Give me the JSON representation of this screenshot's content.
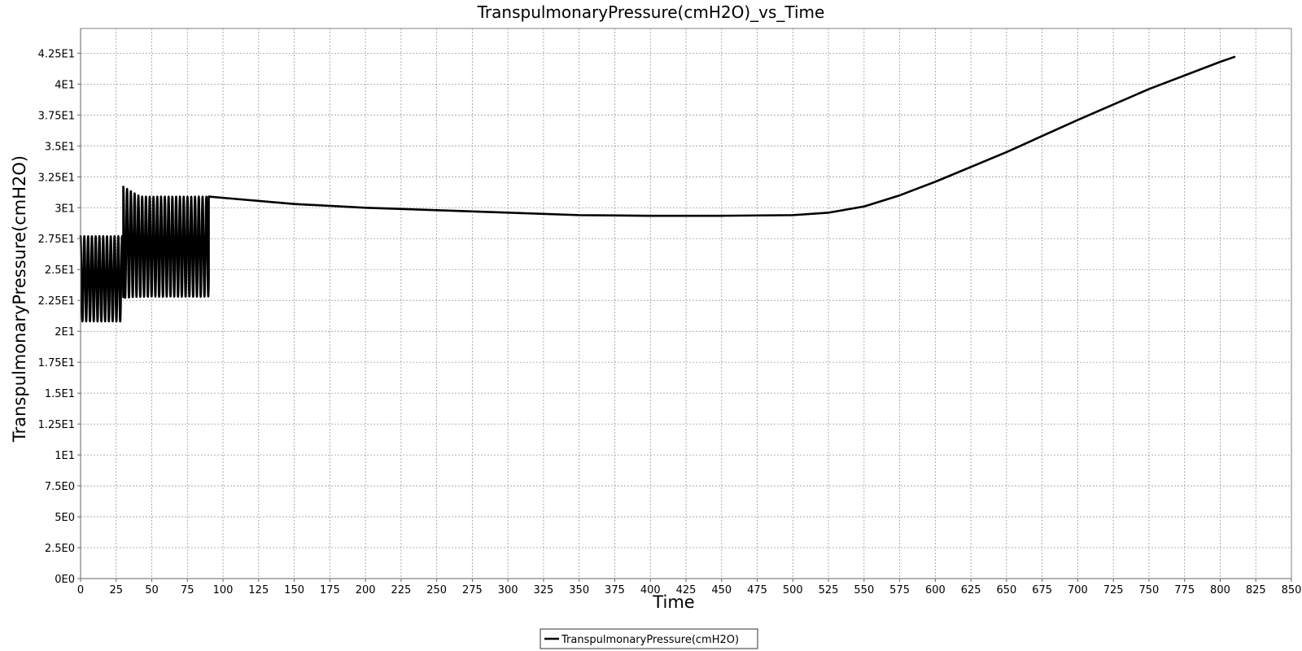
{
  "chart_data": {
    "type": "line",
    "title": "TranspulmonaryPressure(cmH2O)_vs_Time",
    "xlabel": "Time",
    "ylabel": "TranspulmonaryPressure(cmH2O)",
    "xlim": [
      0,
      850
    ],
    "ylim": [
      0,
      44.5
    ],
    "x_ticks": [
      0,
      25,
      50,
      75,
      100,
      125,
      150,
      175,
      200,
      225,
      250,
      275,
      300,
      325,
      350,
      375,
      400,
      425,
      450,
      475,
      500,
      525,
      550,
      575,
      600,
      625,
      650,
      675,
      700,
      725,
      750,
      775,
      800,
      825,
      850
    ],
    "x_tick_labels": [
      "0",
      "25",
      "50",
      "75",
      "100",
      "125",
      "150",
      "175",
      "200",
      "225",
      "250",
      "275",
      "300",
      "325",
      "350",
      "375",
      "400",
      "425",
      "450",
      "475",
      "500",
      "525",
      "550",
      "575",
      "600",
      "625",
      "650",
      "675",
      "700",
      "725",
      "750",
      "775",
      "800",
      "825",
      "850"
    ],
    "y_ticks": [
      0,
      2.5,
      5,
      7.5,
      10,
      12.5,
      15,
      17.5,
      20,
      22.5,
      25,
      27.5,
      30,
      32.5,
      35,
      37.5,
      40,
      42.5
    ],
    "y_tick_labels": [
      "0E0",
      "2.5E0",
      "5E0",
      "7.5E0",
      "1E1",
      "1.25E1",
      "1.5E1",
      "1.75E1",
      "2E1",
      "2.25E1",
      "2.5E1",
      "2.75E1",
      "3E1",
      "3.25E1",
      "3.5E1",
      "3.75E1",
      "4E1",
      "4.25E1"
    ],
    "grid": true,
    "legend_position": "bottom-center",
    "series": [
      {
        "name": "TranspulmonaryPressure(cmH2O)",
        "color": "#000000",
        "segments": [
          {
            "kind": "oscillation",
            "x_start": 0,
            "x_end": 30,
            "period": 2.65,
            "min": 20.8,
            "max": 27.7
          },
          {
            "kind": "oscillation",
            "x_start": 30,
            "x_end": 90,
            "period": 2.65,
            "min": 22.7,
            "max": 31.7,
            "settled_min": 22.8,
            "settled_max": 30.9
          }
        ],
        "x": [
          90,
          100,
          150,
          200,
          250,
          300,
          350,
          400,
          450,
          500,
          525,
          550,
          575,
          600,
          650,
          700,
          750,
          800,
          810
        ],
        "y": [
          30.9,
          30.8,
          30.3,
          30.0,
          29.8,
          29.6,
          29.4,
          29.35,
          29.35,
          29.4,
          29.6,
          30.1,
          31.0,
          32.1,
          34.5,
          37.1,
          39.6,
          41.8,
          42.2
        ]
      }
    ]
  }
}
